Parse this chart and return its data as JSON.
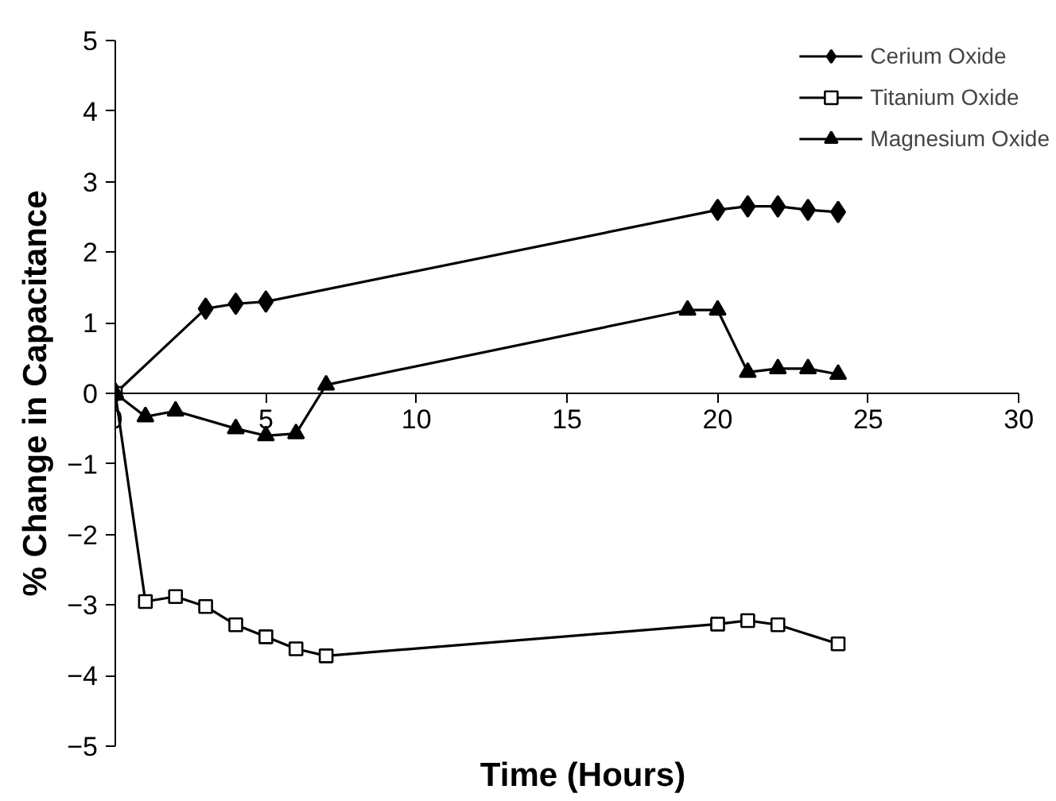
{
  "chart_data": {
    "type": "line",
    "xlabel": "Time (Hours)",
    "ylabel": "% Change in Capacitance",
    "xlim": [
      0,
      30
    ],
    "ylim": [
      -5,
      5
    ],
    "xticks": [
      0,
      5,
      10,
      15,
      20,
      25,
      30
    ],
    "yticks": [
      -5,
      -4,
      -3,
      -2,
      -1,
      0,
      1,
      2,
      3,
      4,
      5
    ],
    "grid": false,
    "legend": "top right",
    "series": [
      {
        "name": "Cerium Oxide",
        "color": "#000000",
        "marker": "diamond",
        "x": [
          0,
          3,
          4,
          5,
          20,
          21,
          22,
          23,
          24
        ],
        "values": [
          0,
          1.2,
          1.27,
          1.3,
          2.6,
          2.65,
          2.65,
          2.6,
          2.57
        ]
      },
      {
        "name": "Titanium Oxide",
        "color": "#000000",
        "marker": "square",
        "x": [
          0,
          1,
          2,
          3,
          4,
          5,
          6,
          7,
          20,
          21,
          22,
          24
        ],
        "values": [
          0,
          -2.95,
          -2.88,
          -3.02,
          -3.28,
          -3.45,
          -3.62,
          -3.72,
          -3.27,
          -3.22,
          -3.28,
          -3.55
        ]
      },
      {
        "name": "Magnesium Oxide",
        "color": "#000000",
        "marker": "triangle",
        "x": [
          0,
          1,
          2,
          4,
          5,
          6,
          7,
          19,
          20,
          21,
          22,
          23,
          24
        ],
        "values": [
          0,
          -0.33,
          -0.25,
          -0.5,
          -0.6,
          -0.57,
          0.12,
          1.18,
          1.18,
          0.3,
          0.35,
          0.35,
          0.27
        ]
      }
    ]
  }
}
